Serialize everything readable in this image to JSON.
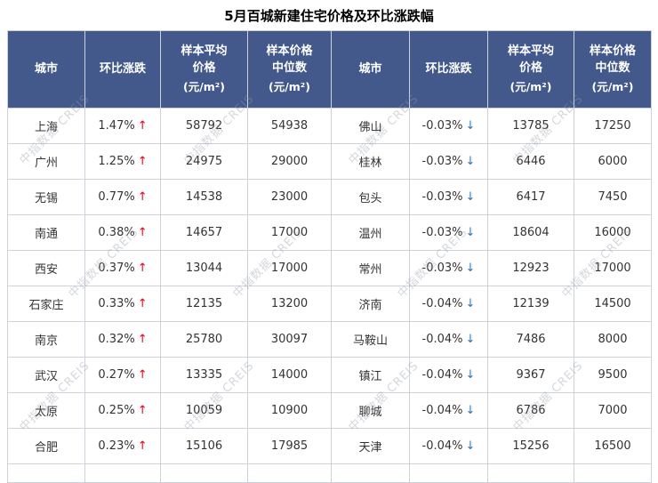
{
  "title": "5月百城新建住宅价格及环比涨跌幅",
  "watermark": "中指数据 CREIS",
  "icons": {
    "up_arrow": "↑",
    "down_arrow": "↓"
  },
  "colors": {
    "header_bg": "#43598B",
    "up": "#E60012",
    "down": "#2E75B6"
  },
  "columns": {
    "city": "城市",
    "change": "环比涨跌",
    "avg": "样本平均\n价格",
    "avg_unit": "(元/m²)",
    "median": "样本价格\n中位数",
    "median_unit": "(元/m²)"
  },
  "chart_data": {
    "type": "table",
    "title": "5月百城新建住宅价格及环比涨跌幅",
    "columns": [
      "城市",
      "环比涨跌",
      "样本平均价格(元/m²)",
      "样本价格中位数(元/m²)"
    ],
    "left_rows": [
      {
        "city": "上海",
        "change": "1.47%",
        "direction": "up",
        "avg_price": "58792",
        "median_price": "54938"
      },
      {
        "city": "广州",
        "change": "1.25%",
        "direction": "up",
        "avg_price": "24975",
        "median_price": "29000"
      },
      {
        "city": "无锡",
        "change": "0.77%",
        "direction": "up",
        "avg_price": "14538",
        "median_price": "23000"
      },
      {
        "city": "南通",
        "change": "0.38%",
        "direction": "up",
        "avg_price": "14657",
        "median_price": "17000"
      },
      {
        "city": "西安",
        "change": "0.37%",
        "direction": "up",
        "avg_price": "13044",
        "median_price": "17000"
      },
      {
        "city": "石家庄",
        "change": "0.33%",
        "direction": "up",
        "avg_price": "12135",
        "median_price": "13200"
      },
      {
        "city": "南京",
        "change": "0.32%",
        "direction": "up",
        "avg_price": "25780",
        "median_price": "30097"
      },
      {
        "city": "武汉",
        "change": "0.27%",
        "direction": "up",
        "avg_price": "13335",
        "median_price": "14000"
      },
      {
        "city": "太原",
        "change": "0.25%",
        "direction": "up",
        "avg_price": "10059",
        "median_price": "10900"
      },
      {
        "city": "合肥",
        "change": "0.23%",
        "direction": "up",
        "avg_price": "15106",
        "median_price": "17985"
      }
    ],
    "right_rows": [
      {
        "city": "佛山",
        "change": "-0.03%",
        "direction": "down",
        "avg_price": "13785",
        "median_price": "17250"
      },
      {
        "city": "桂林",
        "change": "-0.03%",
        "direction": "down",
        "avg_price": "6446",
        "median_price": "6000"
      },
      {
        "city": "包头",
        "change": "-0.03%",
        "direction": "down",
        "avg_price": "6417",
        "median_price": "7450"
      },
      {
        "city": "温州",
        "change": "-0.03%",
        "direction": "down",
        "avg_price": "18604",
        "median_price": "16000"
      },
      {
        "city": "常州",
        "change": "-0.03%",
        "direction": "down",
        "avg_price": "12923",
        "median_price": "17000"
      },
      {
        "city": "济南",
        "change": "-0.04%",
        "direction": "down",
        "avg_price": "12139",
        "median_price": "14500"
      },
      {
        "city": "马鞍山",
        "change": "-0.04%",
        "direction": "down",
        "avg_price": "7486",
        "median_price": "8000"
      },
      {
        "city": "镇江",
        "change": "-0.04%",
        "direction": "down",
        "avg_price": "9367",
        "median_price": "9500"
      },
      {
        "city": "聊城",
        "change": "-0.04%",
        "direction": "down",
        "avg_price": "6786",
        "median_price": "7000"
      },
      {
        "city": "天津",
        "change": "-0.04%",
        "direction": "down",
        "avg_price": "15256",
        "median_price": "16500"
      }
    ]
  }
}
